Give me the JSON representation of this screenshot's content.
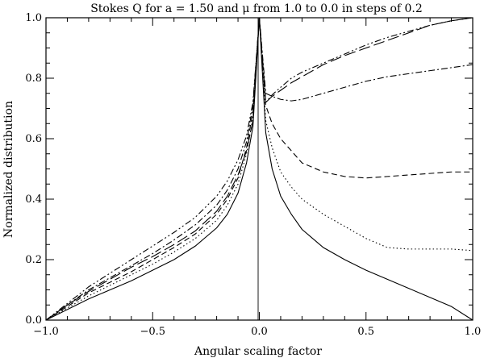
{
  "chart_data": {
    "type": "line",
    "title": "Stokes Q for a = 1.50 and μ from 1.0 to 0.0 in steps of 0.2",
    "xlabel": "Angular scaling factor",
    "ylabel": "Normalized distribution",
    "xlim": [
      -1.0,
      1.0
    ],
    "ylim": [
      0.0,
      1.0
    ],
    "x_ticks": [
      -1.0,
      -0.5,
      0.0,
      0.5,
      1.0
    ],
    "x_tick_labels": [
      "−1.0",
      "−0.5",
      "0.0",
      "0.5",
      "1.0"
    ],
    "y_ticks": [
      0.0,
      0.2,
      0.4,
      0.6,
      0.8,
      1.0
    ],
    "y_tick_labels": [
      "0.0",
      "0.2",
      "0.4",
      "0.6",
      "0.8",
      "1.0"
    ],
    "series": [
      {
        "name": "solid",
        "style": "solid",
        "x": [
          -1.0,
          -0.9,
          -0.8,
          -0.7,
          -0.6,
          -0.5,
          -0.4,
          -0.3,
          -0.2,
          -0.15,
          -0.1,
          -0.06,
          -0.03,
          0.0,
          0.03,
          0.06,
          0.1,
          0.15,
          0.2,
          0.3,
          0.4,
          0.5,
          0.6,
          0.7,
          0.8,
          0.9,
          1.0
        ],
        "y": [
          0.0,
          0.035,
          0.07,
          0.1,
          0.13,
          0.165,
          0.2,
          0.245,
          0.305,
          0.35,
          0.42,
          0.52,
          0.64,
          1.0,
          0.62,
          0.5,
          0.41,
          0.35,
          0.3,
          0.24,
          0.2,
          0.165,
          0.135,
          0.105,
          0.075,
          0.045,
          0.0
        ]
      },
      {
        "name": "dotted",
        "style": "dotted",
        "x": [
          -1.0,
          -0.9,
          -0.8,
          -0.7,
          -0.6,
          -0.5,
          -0.4,
          -0.3,
          -0.2,
          -0.15,
          -0.1,
          -0.06,
          -0.03,
          0.0,
          0.03,
          0.06,
          0.1,
          0.15,
          0.2,
          0.3,
          0.4,
          0.5,
          0.6,
          0.7,
          0.8,
          0.9,
          1.0
        ],
        "y": [
          0.0,
          0.04,
          0.08,
          0.115,
          0.15,
          0.185,
          0.225,
          0.27,
          0.33,
          0.38,
          0.45,
          0.55,
          0.67,
          1.0,
          0.66,
          0.57,
          0.49,
          0.44,
          0.4,
          0.35,
          0.31,
          0.27,
          0.24,
          0.235,
          0.235,
          0.235,
          0.23
        ]
      },
      {
        "name": "dashed",
        "style": "dashed",
        "x": [
          -1.0,
          -0.9,
          -0.8,
          -0.7,
          -0.6,
          -0.5,
          -0.4,
          -0.3,
          -0.2,
          -0.15,
          -0.1,
          -0.06,
          -0.03,
          0.0,
          0.03,
          0.06,
          0.1,
          0.15,
          0.2,
          0.3,
          0.4,
          0.5,
          0.6,
          0.7,
          0.8,
          0.9,
          1.0
        ],
        "y": [
          0.0,
          0.045,
          0.09,
          0.125,
          0.16,
          0.2,
          0.24,
          0.285,
          0.35,
          0.4,
          0.47,
          0.57,
          0.69,
          1.0,
          0.71,
          0.65,
          0.6,
          0.56,
          0.52,
          0.49,
          0.475,
          0.47,
          0.475,
          0.48,
          0.485,
          0.49,
          0.49
        ]
      },
      {
        "name": "dash-dot",
        "style": "dashdot",
        "x": [
          -1.0,
          -0.9,
          -0.8,
          -0.7,
          -0.6,
          -0.5,
          -0.4,
          -0.3,
          -0.2,
          -0.15,
          -0.1,
          -0.06,
          -0.03,
          0.0,
          0.03,
          0.06,
          0.1,
          0.15,
          0.2,
          0.3,
          0.4,
          0.5,
          0.6,
          0.7,
          0.8,
          0.9,
          1.0
        ],
        "y": [
          0.0,
          0.05,
          0.1,
          0.14,
          0.18,
          0.22,
          0.265,
          0.315,
          0.38,
          0.43,
          0.5,
          0.59,
          0.71,
          1.0,
          0.75,
          0.74,
          0.73,
          0.725,
          0.73,
          0.75,
          0.77,
          0.79,
          0.805,
          0.815,
          0.825,
          0.835,
          0.845
        ]
      },
      {
        "name": "dash-dot-dot",
        "style": "dashdotdot",
        "x": [
          -1.0,
          -0.9,
          -0.8,
          -0.7,
          -0.6,
          -0.5,
          -0.4,
          -0.3,
          -0.2,
          -0.15,
          -0.1,
          -0.06,
          -0.03,
          0.0,
          0.03,
          0.06,
          0.1,
          0.15,
          0.2,
          0.3,
          0.4,
          0.5,
          0.6,
          0.7,
          0.8,
          0.9,
          1.0
        ],
        "y": [
          0.0,
          0.055,
          0.11,
          0.155,
          0.2,
          0.245,
          0.29,
          0.34,
          0.41,
          0.46,
          0.53,
          0.61,
          0.72,
          1.0,
          0.72,
          0.745,
          0.77,
          0.8,
          0.82,
          0.85,
          0.88,
          0.91,
          0.935,
          0.955,
          0.975,
          0.99,
          1.0
        ]
      },
      {
        "name": "long-dash",
        "style": "longdash",
        "x": [
          -1.0,
          -0.9,
          -0.8,
          -0.7,
          -0.6,
          -0.5,
          -0.4,
          -0.3,
          -0.2,
          -0.15,
          -0.1,
          -0.06,
          -0.03,
          0.0,
          0.03,
          0.06,
          0.1,
          0.15,
          0.2,
          0.3,
          0.4,
          0.5,
          0.6,
          0.7,
          0.8,
          0.9,
          1.0
        ],
        "y": [
          0.0,
          0.05,
          0.095,
          0.135,
          0.175,
          0.21,
          0.25,
          0.295,
          0.36,
          0.41,
          0.48,
          0.56,
          0.66,
          1.0,
          0.72,
          0.74,
          0.76,
          0.785,
          0.805,
          0.845,
          0.875,
          0.9,
          0.925,
          0.95,
          0.975,
          0.99,
          1.0
        ]
      }
    ],
    "grid": false
  }
}
